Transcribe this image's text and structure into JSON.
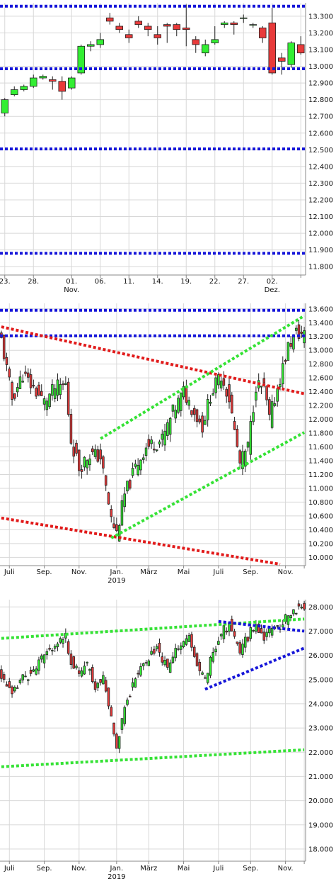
{
  "colors": {
    "up": "#33ee33",
    "down": "#e83a3a",
    "wick": "#222222",
    "grid": "#d8d8d8",
    "axis": "#888888",
    "blue": "#1515d9",
    "red": "#e11a1a",
    "green": "#35e235"
  },
  "chart_data": [
    {
      "type": "candlestick",
      "y_ticks": [
        "13.300",
        "13.200",
        "13.100",
        "13.000",
        "12.900",
        "12.800",
        "12.700",
        "12.600",
        "12.500",
        "12.400",
        "12.300",
        "12.200",
        "12.100",
        "12.000",
        "11.900",
        "11.800"
      ],
      "y_values": [
        13300,
        13200,
        13100,
        13000,
        12900,
        12800,
        12700,
        12600,
        12500,
        12400,
        12300,
        12200,
        12100,
        12000,
        11900,
        11800
      ],
      "ylim": [
        11750,
        13380
      ],
      "x_ticks": [
        {
          "label": "23.",
          "sub": "",
          "i": 0
        },
        {
          "label": "28.",
          "sub": "",
          "i": 3
        },
        {
          "label": "01.",
          "sub": "Nov.",
          "i": 7
        },
        {
          "label": "06.",
          "sub": "",
          "i": 10
        },
        {
          "label": "11.",
          "sub": "",
          "i": 13
        },
        {
          "label": "14.",
          "sub": "",
          "i": 16
        },
        {
          "label": "19.",
          "sub": "",
          "i": 19
        },
        {
          "label": "22.",
          "sub": "",
          "i": 22
        },
        {
          "label": "27.",
          "sub": "",
          "i": 25
        },
        {
          "label": "02.",
          "sub": "Dez.",
          "i": 28
        },
        {
          "label": "",
          "sub": "",
          "i": 31
        }
      ],
      "x_count": 32,
      "candles": [
        [
          12720,
          12800,
          12700,
          12810
        ],
        [
          12830,
          12860,
          12820,
          12880
        ],
        [
          12860,
          12880,
          12850,
          12890
        ],
        [
          12880,
          12930,
          12870,
          12950
        ],
        [
          12930,
          12940,
          12920,
          12950
        ],
        [
          12920,
          12910,
          12860,
          12940
        ],
        [
          12910,
          12850,
          12800,
          12940
        ],
        [
          12870,
          12930,
          12860,
          12940
        ],
        [
          12960,
          13120,
          12950,
          13130
        ],
        [
          13120,
          13130,
          13090,
          13150
        ],
        [
          13130,
          13160,
          13110,
          13200
        ],
        [
          13290,
          13270,
          13250,
          13320
        ],
        [
          13240,
          13220,
          13200,
          13260
        ],
        [
          13190,
          13170,
          13140,
          13220
        ],
        [
          13270,
          13250,
          13230,
          13300
        ],
        [
          13240,
          13220,
          13180,
          13260
        ],
        [
          13190,
          13170,
          13130,
          13240
        ],
        [
          13250,
          13240,
          13140,
          13260
        ],
        [
          13250,
          13220,
          13180,
          13260
        ],
        [
          13230,
          13220,
          13120,
          13370
        ],
        [
          13160,
          13130,
          13080,
          13180
        ],
        [
          13080,
          13130,
          13060,
          13160
        ],
        [
          13140,
          13160,
          13130,
          13240
        ],
        [
          13250,
          13260,
          13230,
          13270
        ],
        [
          13260,
          13250,
          13190,
          13270
        ],
        [
          13290,
          13290,
          13260,
          13310
        ],
        [
          13250,
          13250,
          13230,
          13260
        ],
        [
          13230,
          13170,
          13140,
          13240
        ],
        [
          13260,
          12960,
          12950,
          13350
        ],
        [
          13050,
          13030,
          12950,
          13080
        ],
        [
          13010,
          13140,
          12990,
          13150
        ],
        [
          13130,
          13080,
          13070,
          13180
        ]
      ],
      "h_lines": [
        {
          "y": 13360,
          "color": "blue"
        },
        {
          "y": 12985,
          "color": "blue"
        },
        {
          "y": 12505,
          "color": "blue"
        },
        {
          "y": 11880,
          "color": "blue"
        }
      ],
      "trend_lines": []
    },
    {
      "type": "candlestick",
      "y_ticks": [
        "13.600",
        "13.400",
        "13.200",
        "13.000",
        "12.800",
        "12.600",
        "12.400",
        "12.200",
        "12.000",
        "11.800",
        "11.600",
        "11.400",
        "11.200",
        "11.000",
        "10.800",
        "10.600",
        "10.400",
        "10.200",
        "10.000"
      ],
      "y_values": [
        13600,
        13400,
        13200,
        13000,
        12800,
        12600,
        12400,
        12200,
        12000,
        11800,
        11600,
        11400,
        11200,
        11000,
        10800,
        10600,
        10400,
        10200,
        10000
      ],
      "ylim": [
        9880,
        13680
      ],
      "x_ticks": [
        {
          "label": "Juli",
          "sub": "",
          "i": 3
        },
        {
          "label": "Sep.",
          "sub": "",
          "i": 16
        },
        {
          "label": "Nov.",
          "sub": "",
          "i": 29
        },
        {
          "label": "Jan.",
          "sub": "2019",
          "i": 43
        },
        {
          "label": "März",
          "sub": "",
          "i": 55
        },
        {
          "label": "Mai",
          "sub": "",
          "i": 68
        },
        {
          "label": "Juli",
          "sub": "",
          "i": 81
        },
        {
          "label": "Sep.",
          "sub": "",
          "i": 93
        },
        {
          "label": "Nov.",
          "sub": "",
          "i": 106
        },
        {
          "label": "",
          "sub": "",
          "i": 113
        }
      ],
      "x_count": 114,
      "candles_src": {
        "seed": 11,
        "anchors": [
          [
            0,
            13150
          ],
          [
            4,
            12300
          ],
          [
            8,
            12650
          ],
          [
            12,
            12450
          ],
          [
            16,
            12250
          ],
          [
            20,
            12450
          ],
          [
            24,
            12500
          ],
          [
            26,
            11700
          ],
          [
            29,
            11300
          ],
          [
            33,
            11500
          ],
          [
            37,
            11450
          ],
          [
            41,
            10550
          ],
          [
            43,
            10350
          ],
          [
            46,
            10900
          ],
          [
            50,
            11300
          ],
          [
            54,
            11600
          ],
          [
            60,
            11700
          ],
          [
            64,
            12100
          ],
          [
            68,
            12400
          ],
          [
            72,
            12100
          ],
          [
            75,
            11900
          ],
          [
            78,
            12350
          ],
          [
            82,
            12650
          ],
          [
            85,
            12300
          ],
          [
            89,
            11350
          ],
          [
            92,
            11600
          ],
          [
            95,
            12500
          ],
          [
            98,
            12450
          ],
          [
            100,
            12000
          ],
          [
            104,
            12600
          ],
          [
            107,
            13050
          ],
          [
            110,
            13250
          ],
          [
            113,
            13220
          ]
        ]
      },
      "h_lines": [
        {
          "y": 13580,
          "color": "blue"
        },
        {
          "y": 13210,
          "color": "blue"
        }
      ],
      "trend_lines": [
        {
          "i1": 0,
          "y1": 13340,
          "i2": 113,
          "y2": 12370,
          "color": "red"
        },
        {
          "i1": 0,
          "y1": 10570,
          "i2": 104,
          "y2": 9900,
          "color": "red"
        },
        {
          "i1": 37,
          "y1": 11720,
          "i2": 113,
          "y2": 13500,
          "color": "green"
        },
        {
          "i1": 41,
          "y1": 10280,
          "i2": 113,
          "y2": 11810,
          "color": "green"
        }
      ]
    },
    {
      "type": "candlestick",
      "y_ticks": [
        "28.000",
        "27.000",
        "26.000",
        "25.000",
        "24.000",
        "23.000",
        "22.000",
        "21.000",
        "20.000",
        "19.000",
        "18.000"
      ],
      "y_values": [
        28000,
        27000,
        26000,
        25000,
        24000,
        23000,
        22000,
        21000,
        20000,
        19000,
        18000
      ],
      "ylim": [
        17500,
        28300
      ],
      "x_ticks": [
        {
          "label": "Juli",
          "sub": "",
          "i": 3
        },
        {
          "label": "Sep.",
          "sub": "",
          "i": 16
        },
        {
          "label": "Nov.",
          "sub": "",
          "i": 29
        },
        {
          "label": "Jan.",
          "sub": "2019",
          "i": 43
        },
        {
          "label": "März",
          "sub": "",
          "i": 55
        },
        {
          "label": "Mai",
          "sub": "",
          "i": 68
        },
        {
          "label": "Juli",
          "sub": "",
          "i": 81
        },
        {
          "label": "Sep.",
          "sub": "",
          "i": 93
        },
        {
          "label": "Nov.",
          "sub": "",
          "i": 106
        },
        {
          "label": "",
          "sub": "",
          "i": 113
        }
      ],
      "x_count": 114,
      "candles_src": {
        "seed": 23,
        "anchors": [
          [
            0,
            25200
          ],
          [
            4,
            24300
          ],
          [
            8,
            25100
          ],
          [
            12,
            25300
          ],
          [
            16,
            26000
          ],
          [
            20,
            26500
          ],
          [
            24,
            26700
          ],
          [
            26,
            25800
          ],
          [
            29,
            25200
          ],
          [
            32,
            25600
          ],
          [
            35,
            24700
          ],
          [
            38,
            25100
          ],
          [
            41,
            23400
          ],
          [
            43,
            22300
          ],
          [
            46,
            23900
          ],
          [
            50,
            25100
          ],
          [
            54,
            25800
          ],
          [
            58,
            26300
          ],
          [
            62,
            25400
          ],
          [
            66,
            26400
          ],
          [
            70,
            26700
          ],
          [
            73,
            25500
          ],
          [
            76,
            25000
          ],
          [
            79,
            26200
          ],
          [
            82,
            26900
          ],
          [
            85,
            27300
          ],
          [
            89,
            26200
          ],
          [
            92,
            26800
          ],
          [
            95,
            27300
          ],
          [
            98,
            26800
          ],
          [
            102,
            27100
          ],
          [
            106,
            27500
          ],
          [
            110,
            27900
          ],
          [
            113,
            28000
          ]
        ]
      },
      "h_lines": [],
      "trend_lines": [
        {
          "i1": 0,
          "y1": 26700,
          "i2": 113,
          "y2": 27500,
          "color": "green"
        },
        {
          "i1": 0,
          "y1": 21400,
          "i2": 113,
          "y2": 22100,
          "color": "green"
        },
        {
          "i1": 81,
          "y1": 27400,
          "i2": 113,
          "y2": 27000,
          "color": "blue"
        },
        {
          "i1": 76,
          "y1": 24600,
          "i2": 113,
          "y2": 26300,
          "color": "blue"
        }
      ]
    }
  ]
}
